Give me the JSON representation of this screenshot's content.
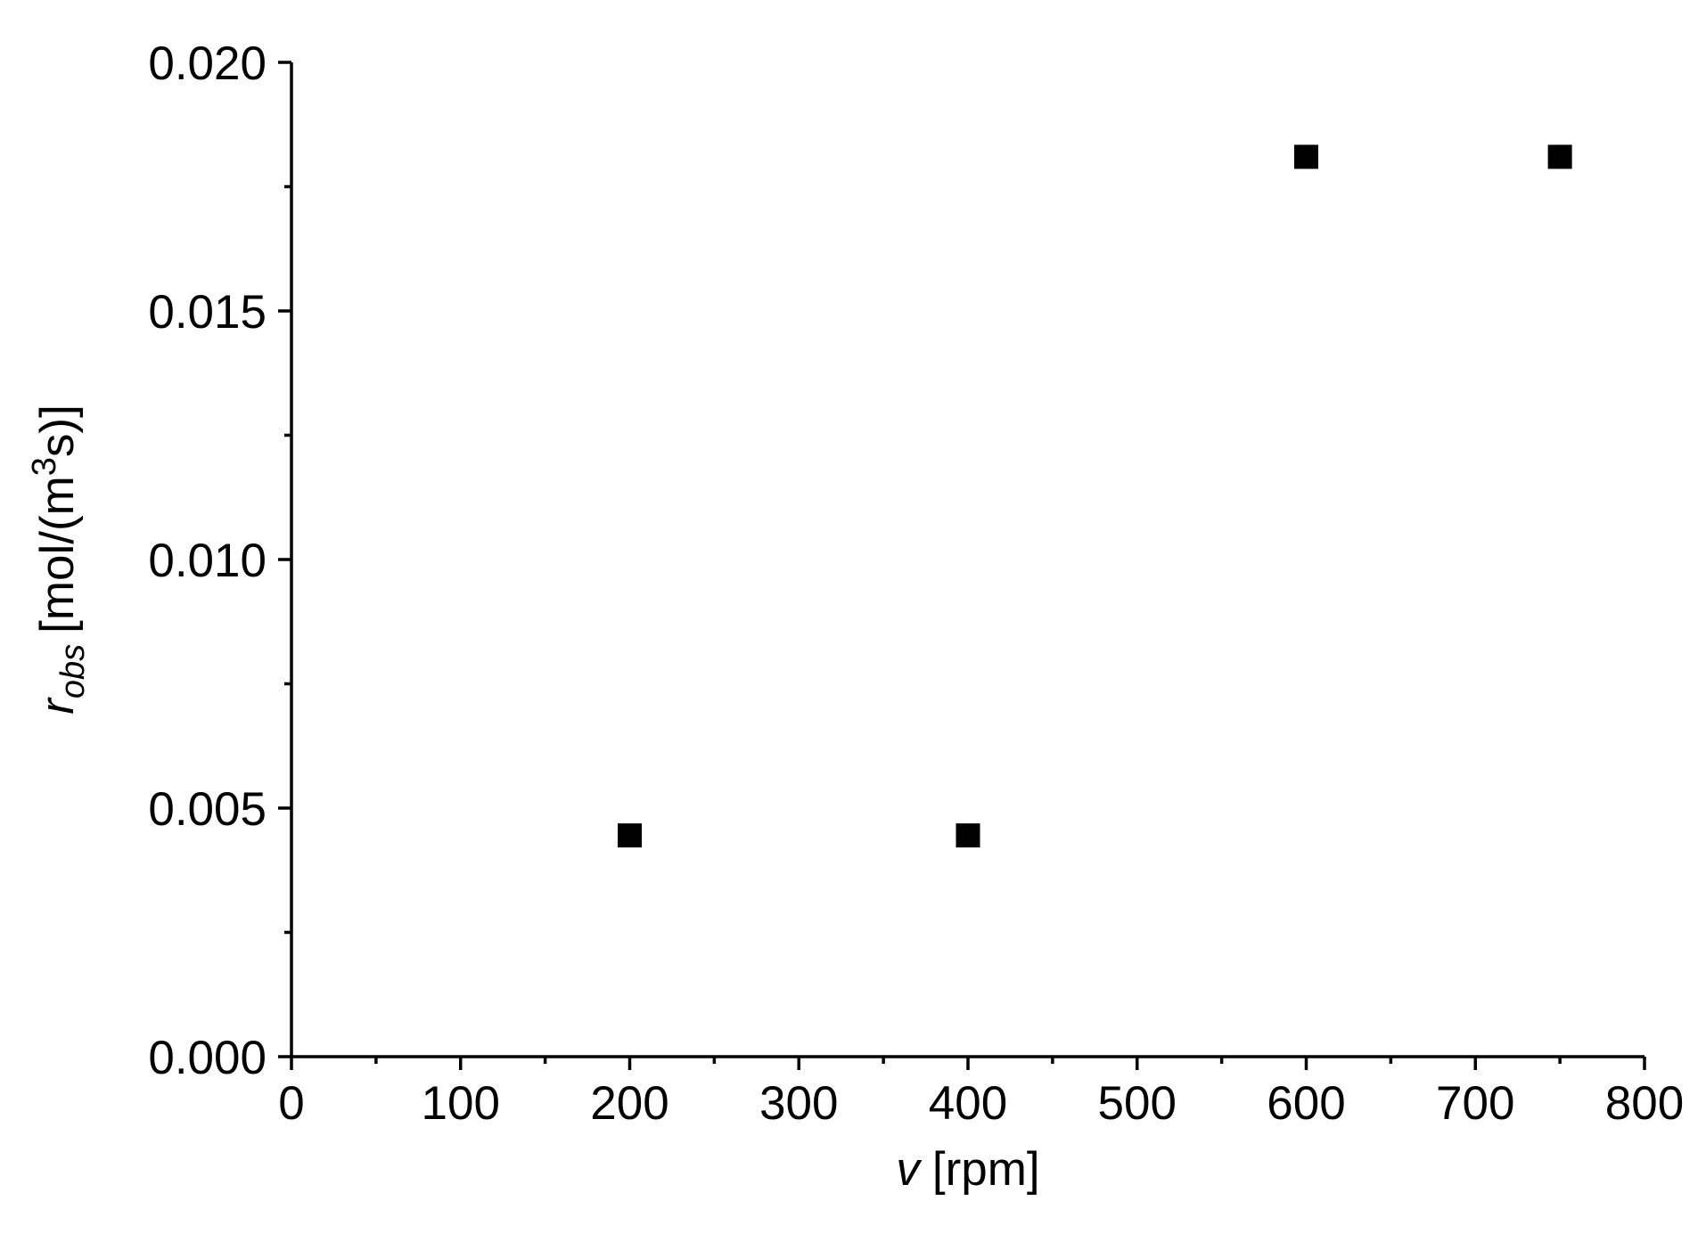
{
  "chart_data": {
    "type": "scatter",
    "x_label": {
      "symbol": "v",
      "unit": "[rpm]"
    },
    "y_label": {
      "symbol": "r",
      "subscript": "obs",
      "unit_start": "[mol/(m",
      "superscript": "3",
      "unit_end": "s)]"
    },
    "x": [
      200,
      400,
      600,
      750
    ],
    "values": [
      0.00445,
      0.00445,
      0.0181,
      0.0181
    ],
    "color": "#000000",
    "marker": "square",
    "xlim": [
      0,
      800
    ],
    "ylim": [
      0,
      0.02
    ],
    "xticks": [
      0,
      100,
      200,
      300,
      400,
      500,
      600,
      700,
      800
    ],
    "yticks": [
      {
        "value": 0,
        "label": "0.000"
      },
      {
        "value": 0.005,
        "label": "0.005"
      },
      {
        "value": 0.01,
        "label": "0.010"
      },
      {
        "value": 0.015,
        "label": "0.015"
      },
      {
        "value": 0.02,
        "label": "0.020"
      }
    ],
    "xminorticks": [
      50,
      150,
      250,
      350,
      450,
      550,
      650,
      750
    ],
    "yminorticks": [
      0.0025,
      0.0075,
      0.0125,
      0.0175
    ],
    "grid": false
  }
}
